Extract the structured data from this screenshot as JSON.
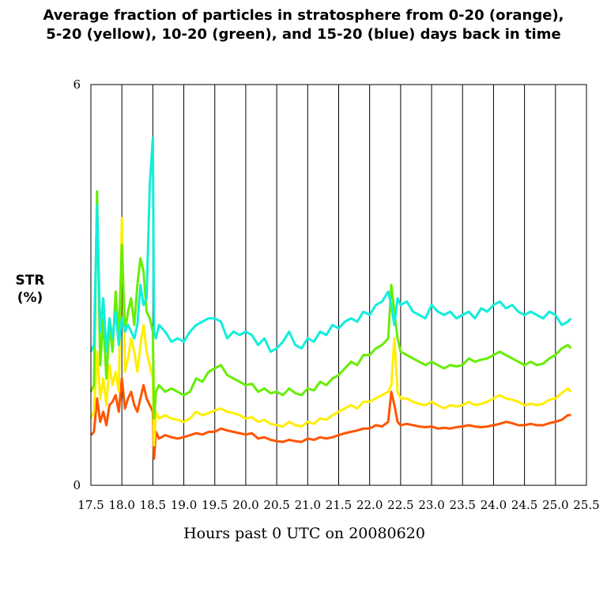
{
  "chart_data": {
    "type": "line",
    "title_line1": "Average fraction of particles in stratosphere from 0-20 (orange),",
    "title_line2": "5-20 (yellow), 10-20 (green), and 15-20 (blue) days back in time",
    "ylabel_line1": "STR",
    "ylabel_line2": "(%)",
    "xlabel": "Hours past 0 UTC on 20080620",
    "xlim": [
      17.5,
      25.5
    ],
    "ylim": [
      0,
      6
    ],
    "x_ticks": [
      "17.5",
      "18.0",
      "18.5",
      "19.0",
      "19.5",
      "20.0",
      "20.5",
      "21.0",
      "21.5",
      "22.0",
      "22.5",
      "23.0",
      "23.5",
      "24.0",
      "24.5",
      "25.0",
      "25.5"
    ],
    "y_ticks": [
      "0",
      "6"
    ],
    "grid": "vertical",
    "series": [
      {
        "color": "#ff5500",
        "x": [
          17.5,
          17.55,
          17.6,
          17.65,
          17.7,
          17.75,
          17.8,
          17.85,
          17.9,
          17.95,
          18.0,
          18.05,
          18.1,
          18.15,
          18.2,
          18.25,
          18.3,
          18.35,
          18.4,
          18.45,
          18.5,
          18.52,
          18.55,
          18.6,
          18.7,
          18.8,
          18.9,
          19.0,
          19.1,
          19.2,
          19.3,
          19.4,
          19.5,
          19.6,
          19.7,
          19.8,
          19.9,
          20.0,
          20.1,
          20.2,
          20.3,
          20.4,
          20.5,
          20.6,
          20.7,
          20.8,
          20.9,
          21.0,
          21.1,
          21.2,
          21.3,
          21.4,
          21.5,
          21.6,
          21.7,
          21.8,
          21.9,
          22.0,
          22.1,
          22.2,
          22.3,
          22.35,
          22.4,
          22.45,
          22.5,
          22.6,
          22.7,
          22.8,
          22.9,
          23.0,
          23.1,
          23.2,
          23.3,
          23.4,
          23.5,
          23.6,
          23.7,
          23.8,
          23.9,
          24.0,
          24.1,
          24.2,
          24.3,
          24.4,
          24.5,
          24.6,
          24.7,
          24.8,
          24.9,
          25.0,
          25.1,
          25.2,
          25.25
        ],
        "y": [
          0.75,
          0.8,
          1.3,
          0.95,
          1.1,
          0.9,
          1.2,
          1.25,
          1.35,
          1.1,
          1.6,
          1.15,
          1.3,
          1.4,
          1.2,
          1.1,
          1.3,
          1.5,
          1.3,
          1.2,
          1.1,
          0.4,
          0.8,
          0.7,
          0.75,
          0.72,
          0.7,
          0.72,
          0.75,
          0.78,
          0.76,
          0.8,
          0.8,
          0.85,
          0.82,
          0.8,
          0.78,
          0.76,
          0.78,
          0.7,
          0.72,
          0.68,
          0.66,
          0.65,
          0.68,
          0.66,
          0.65,
          0.7,
          0.68,
          0.72,
          0.7,
          0.72,
          0.75,
          0.78,
          0.8,
          0.82,
          0.85,
          0.85,
          0.9,
          0.88,
          0.95,
          1.4,
          1.2,
          0.95,
          0.9,
          0.92,
          0.9,
          0.88,
          0.87,
          0.88,
          0.85,
          0.86,
          0.85,
          0.87,
          0.88,
          0.9,
          0.88,
          0.87,
          0.88,
          0.9,
          0.92,
          0.95,
          0.93,
          0.9,
          0.9,
          0.92,
          0.9,
          0.9,
          0.93,
          0.95,
          0.98,
          1.05,
          1.05
        ]
      },
      {
        "color": "#ffee00",
        "x": [
          17.5,
          17.55,
          17.6,
          17.65,
          17.7,
          17.75,
          17.8,
          17.85,
          17.9,
          17.95,
          18.0,
          18.05,
          18.1,
          18.15,
          18.2,
          18.25,
          18.3,
          18.35,
          18.4,
          18.45,
          18.5,
          18.52,
          18.55,
          18.6,
          18.7,
          18.8,
          18.9,
          19.0,
          19.1,
          19.2,
          19.3,
          19.4,
          19.5,
          19.6,
          19.7,
          19.8,
          19.9,
          20.0,
          20.1,
          20.2,
          20.3,
          20.4,
          20.5,
          20.6,
          20.7,
          20.8,
          20.9,
          21.0,
          21.1,
          21.2,
          21.3,
          21.4,
          21.5,
          21.6,
          21.7,
          21.8,
          21.9,
          22.0,
          22.1,
          22.2,
          22.3,
          22.35,
          22.4,
          22.45,
          22.5,
          22.6,
          22.7,
          22.8,
          22.9,
          23.0,
          23.1,
          23.2,
          23.3,
          23.4,
          23.5,
          23.6,
          23.7,
          23.8,
          23.9,
          24.0,
          24.1,
          24.2,
          24.3,
          24.4,
          24.5,
          24.6,
          24.7,
          24.8,
          24.9,
          25.0,
          25.1,
          25.2,
          25.25
        ],
        "y": [
          1.0,
          1.1,
          2.0,
          1.3,
          1.6,
          1.2,
          1.8,
          1.5,
          1.7,
          1.4,
          4.0,
          1.7,
          1.9,
          2.2,
          2.0,
          1.7,
          2.1,
          2.4,
          2.0,
          1.8,
          1.6,
          0.6,
          1.1,
          1.0,
          1.05,
          1.0,
          0.98,
          0.95,
          1.0,
          1.1,
          1.05,
          1.08,
          1.12,
          1.15,
          1.1,
          1.08,
          1.05,
          1.0,
          1.02,
          0.95,
          0.98,
          0.92,
          0.9,
          0.88,
          0.95,
          0.9,
          0.88,
          0.95,
          0.92,
          1.0,
          0.98,
          1.05,
          1.1,
          1.15,
          1.2,
          1.15,
          1.25,
          1.25,
          1.3,
          1.35,
          1.4,
          1.5,
          2.2,
          1.4,
          1.3,
          1.3,
          1.25,
          1.22,
          1.2,
          1.25,
          1.2,
          1.15,
          1.2,
          1.18,
          1.2,
          1.25,
          1.2,
          1.22,
          1.25,
          1.3,
          1.35,
          1.3,
          1.28,
          1.25,
          1.2,
          1.22,
          1.2,
          1.22,
          1.28,
          1.3,
          1.38,
          1.45,
          1.4
        ]
      },
      {
        "color": "#66ee00",
        "x": [
          17.5,
          17.55,
          17.6,
          17.65,
          17.7,
          17.75,
          17.8,
          17.85,
          17.9,
          17.95,
          18.0,
          18.05,
          18.1,
          18.15,
          18.2,
          18.25,
          18.3,
          18.35,
          18.4,
          18.45,
          18.5,
          18.52,
          18.55,
          18.6,
          18.7,
          18.8,
          18.9,
          19.0,
          19.1,
          19.2,
          19.3,
          19.4,
          19.5,
          19.6,
          19.7,
          19.8,
          19.9,
          20.0,
          20.1,
          20.2,
          20.3,
          20.4,
          20.5,
          20.6,
          20.7,
          20.8,
          20.9,
          21.0,
          21.1,
          21.2,
          21.3,
          21.4,
          21.5,
          21.6,
          21.7,
          21.8,
          21.9,
          22.0,
          22.1,
          22.2,
          22.3,
          22.35,
          22.4,
          22.45,
          22.5,
          22.6,
          22.7,
          22.8,
          22.9,
          23.0,
          23.1,
          23.2,
          23.3,
          23.4,
          23.5,
          23.6,
          23.7,
          23.8,
          23.9,
          24.0,
          24.1,
          24.2,
          24.3,
          24.4,
          24.5,
          24.6,
          24.7,
          24.8,
          24.9,
          25.0,
          25.1,
          25.2,
          25.25
        ],
        "y": [
          1.4,
          1.5,
          4.4,
          1.8,
          2.5,
          1.6,
          2.4,
          2.0,
          2.9,
          2.2,
          3.6,
          2.3,
          2.6,
          2.8,
          2.4,
          3.0,
          3.4,
          3.2,
          2.6,
          2.5,
          2.3,
          1.0,
          1.4,
          1.5,
          1.4,
          1.45,
          1.4,
          1.35,
          1.4,
          1.6,
          1.55,
          1.7,
          1.75,
          1.8,
          1.65,
          1.6,
          1.55,
          1.5,
          1.52,
          1.4,
          1.45,
          1.38,
          1.4,
          1.35,
          1.45,
          1.38,
          1.35,
          1.45,
          1.42,
          1.55,
          1.5,
          1.6,
          1.65,
          1.75,
          1.85,
          1.8,
          1.95,
          1.95,
          2.05,
          2.1,
          2.2,
          3.0,
          2.6,
          2.2,
          2.0,
          1.95,
          1.9,
          1.85,
          1.8,
          1.85,
          1.8,
          1.75,
          1.8,
          1.78,
          1.8,
          1.9,
          1.85,
          1.88,
          1.9,
          1.95,
          2.0,
          1.95,
          1.9,
          1.85,
          1.8,
          1.85,
          1.8,
          1.82,
          1.9,
          1.95,
          2.05,
          2.1,
          2.05
        ]
      },
      {
        "color": "#11eedd",
        "x": [
          17.5,
          17.55,
          17.6,
          17.65,
          17.7,
          17.75,
          17.8,
          17.85,
          17.9,
          17.95,
          18.0,
          18.05,
          18.1,
          18.15,
          18.2,
          18.25,
          18.3,
          18.35,
          18.4,
          18.45,
          18.5,
          18.52,
          18.55,
          18.6,
          18.7,
          18.8,
          18.9,
          19.0,
          19.1,
          19.2,
          19.3,
          19.4,
          19.5,
          19.6,
          19.7,
          19.8,
          19.9,
          20.0,
          20.1,
          20.2,
          20.3,
          20.4,
          20.5,
          20.6,
          20.7,
          20.8,
          20.9,
          21.0,
          21.1,
          21.2,
          21.3,
          21.4,
          21.5,
          21.6,
          21.7,
          21.8,
          21.9,
          22.0,
          22.1,
          22.2,
          22.3,
          22.35,
          22.4,
          22.45,
          22.5,
          22.6,
          22.7,
          22.8,
          22.9,
          23.0,
          23.1,
          23.2,
          23.3,
          23.4,
          23.5,
          23.6,
          23.7,
          23.8,
          23.9,
          24.0,
          24.1,
          24.2,
          24.3,
          24.4,
          24.5,
          24.6,
          24.7,
          24.8,
          24.9,
          25.0,
          25.1,
          25.2,
          25.25
        ],
        "y": [
          2.0,
          2.1,
          4.2,
          2.3,
          2.8,
          2.0,
          2.5,
          2.2,
          2.6,
          2.1,
          2.5,
          2.3,
          2.4,
          2.3,
          2.2,
          2.4,
          3.0,
          2.7,
          2.8,
          4.5,
          5.2,
          2.3,
          2.2,
          2.4,
          2.3,
          2.15,
          2.2,
          2.15,
          2.3,
          2.4,
          2.45,
          2.5,
          2.5,
          2.45,
          2.2,
          2.3,
          2.25,
          2.3,
          2.25,
          2.1,
          2.2,
          2.0,
          2.05,
          2.15,
          2.3,
          2.1,
          2.05,
          2.2,
          2.15,
          2.3,
          2.25,
          2.4,
          2.35,
          2.45,
          2.5,
          2.45,
          2.6,
          2.55,
          2.7,
          2.75,
          2.9,
          2.7,
          2.4,
          2.8,
          2.7,
          2.75,
          2.6,
          2.55,
          2.5,
          2.7,
          2.6,
          2.55,
          2.6,
          2.5,
          2.55,
          2.6,
          2.5,
          2.65,
          2.6,
          2.7,
          2.75,
          2.65,
          2.7,
          2.6,
          2.55,
          2.6,
          2.55,
          2.5,
          2.6,
          2.55,
          2.4,
          2.45,
          2.5
        ]
      }
    ]
  }
}
